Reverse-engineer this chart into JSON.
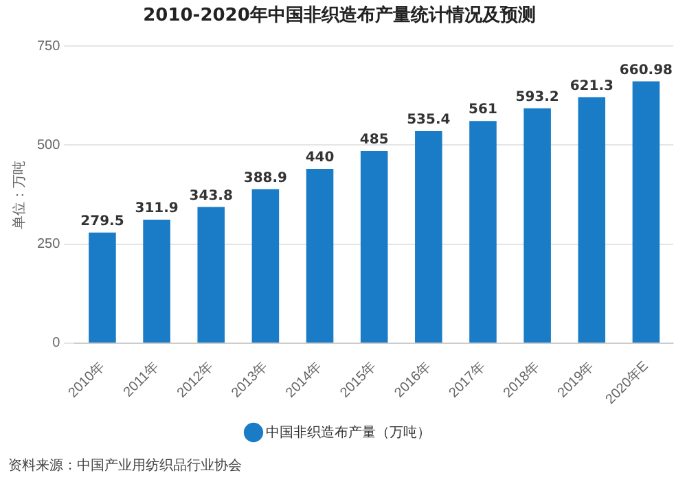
{
  "chart_data": {
    "type": "bar",
    "title": "2010-2020年中国非织造布产量统计情况及预测",
    "ylabel": "单位：万吨",
    "categories": [
      "2010年",
      "2011年",
      "2012年",
      "2013年",
      "2014年",
      "2015年",
      "2016年",
      "2017年",
      "2018年",
      "2019年",
      "2020年E"
    ],
    "series": [
      {
        "name": "中国非织造布产量（万吨）",
        "color": "#1a7cc6",
        "values": [
          279.5,
          311.9,
          343.8,
          388.9,
          440,
          485,
          535.4,
          561,
          593.2,
          621.3,
          660.98
        ]
      }
    ],
    "ylim": [
      0,
      750
    ],
    "yticks": [
      0,
      250,
      500,
      750
    ],
    "grid": "y",
    "legend": "bottom",
    "marker": "circle",
    "data_labels": true,
    "annotations": [
      "资料来源：中国产业用纺织品行业协会"
    ]
  }
}
